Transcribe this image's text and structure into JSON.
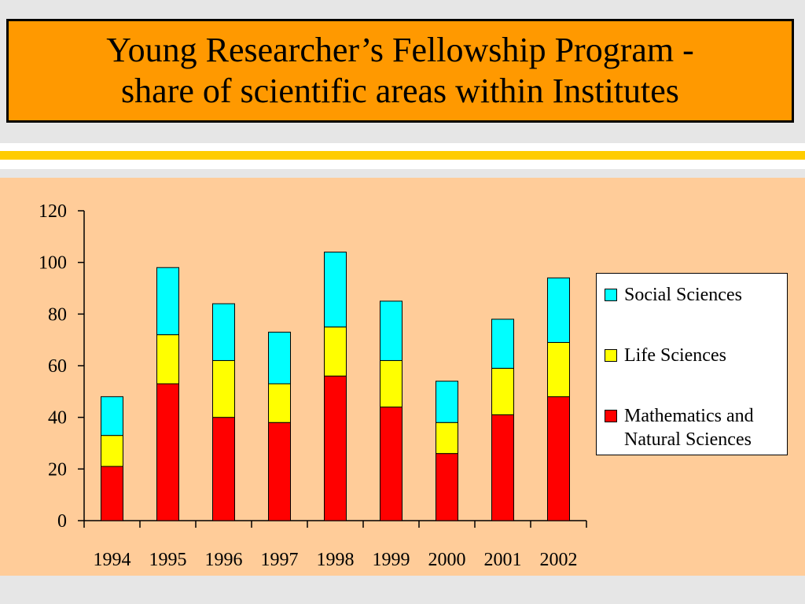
{
  "title": {
    "line1": "Young Researcher’s Fellowship Program -",
    "line2": "share of scientific areas within Institutes"
  },
  "colors": {
    "title_bg": "#ff9900",
    "panel_bg": "#ffcc99",
    "stripe": "#ffcc00"
  },
  "chart_data": {
    "type": "bar",
    "stacked": true,
    "categories": [
      "1994",
      "1995",
      "1996",
      "1997",
      "1998",
      "1999",
      "2000",
      "2001",
      "2002"
    ],
    "series": [
      {
        "name": "Mathematics and Natural Sciences",
        "color": "#ff0000",
        "values": [
          21,
          53,
          40,
          38,
          56,
          44,
          26,
          41,
          48
        ]
      },
      {
        "name": "Life Sciences",
        "color": "#ffff00",
        "values": [
          12,
          19,
          22,
          15,
          19,
          18,
          12,
          18,
          21
        ]
      },
      {
        "name": "Social Sciences",
        "color": "#00ffff",
        "values": [
          15,
          26,
          22,
          20,
          29,
          23,
          16,
          19,
          25
        ]
      }
    ],
    "ylim": [
      0,
      120
    ],
    "yticks": [
      "0",
      "20",
      "40",
      "60",
      "80",
      "100",
      "120"
    ],
    "xlabel": "",
    "ylabel": "",
    "grid": false,
    "legend_position": "right"
  },
  "legend": {
    "items": [
      {
        "label": "Social Sciences",
        "color": "#00ffff"
      },
      {
        "label": "Life Sciences",
        "color": "#ffff00"
      },
      {
        "label": "Mathematics and Natural Sciences",
        "color": "#ff0000"
      }
    ]
  }
}
